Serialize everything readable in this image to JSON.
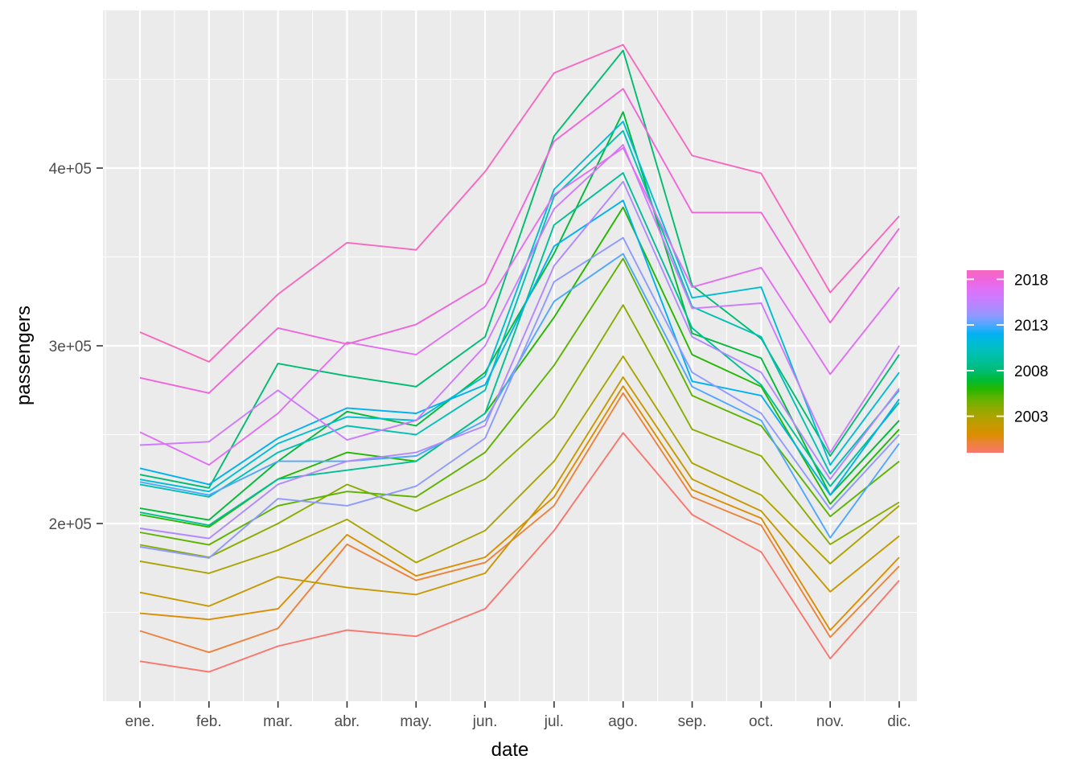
{
  "figure": {
    "background": "#ffffff"
  },
  "panel": {
    "background": "#ebebeb",
    "grid_major_color": "#ffffff",
    "grid_minor_color": "#ffffff",
    "tick_color": "#333333",
    "tick_label_color": "#4d4d4d",
    "axis_title_color": "#000000"
  },
  "legend": {
    "position": "right",
    "type": "colorbar",
    "tick_labels": [
      "2018",
      "2013",
      "2008",
      "2003"
    ],
    "tick_years": [
      2018,
      2013,
      2008,
      2003
    ],
    "year_min": 1999,
    "year_max": 2019,
    "tick_mark_color": "#ffffff",
    "label_color": "#000000"
  },
  "chart_data": {
    "type": "line",
    "x": [
      "ene.",
      "feb.",
      "mar.",
      "abr.",
      "may.",
      "jun.",
      "jul.",
      "ago.",
      "sep.",
      "oct.",
      "nov.",
      "dic."
    ],
    "xlabel": "date",
    "ylabel": "passengers",
    "ylim": [
      100000,
      480000
    ],
    "yticks": [
      {
        "label": "2e+05",
        "value": 200000
      },
      {
        "label": "3e+05",
        "value": 300000
      },
      {
        "label": "4e+05",
        "value": 400000
      }
    ],
    "yminor": [
      150000,
      250000,
      350000,
      450000
    ],
    "grid": true,
    "legend_position": "right",
    "series": [
      {
        "name": "1999",
        "color": "#F8766D",
        "values": [
          122500,
          116500,
          131000,
          140000,
          136500,
          152000,
          196000,
          251000,
          205000,
          184000,
          124000,
          168000
        ]
      },
      {
        "name": "2000",
        "color": "#EC823C",
        "values": [
          139600,
          127500,
          141000,
          188300,
          168000,
          178000,
          210000,
          273400,
          215000,
          199000,
          136000,
          176000
        ]
      },
      {
        "name": "2001",
        "color": "#DB8E00",
        "values": [
          149500,
          146000,
          152000,
          193700,
          170500,
          181000,
          215000,
          277300,
          219000,
          203000,
          140000,
          181000
        ]
      },
      {
        "name": "2002",
        "color": "#C69900",
        "values": [
          161200,
          153500,
          170000,
          164000,
          160000,
          172000,
          220000,
          282400,
          225000,
          207000,
          161600,
          193000
        ]
      },
      {
        "name": "2003",
        "color": "#ABA300",
        "values": [
          178800,
          172000,
          185000,
          202300,
          178000,
          196000,
          235000,
          294100,
          234000,
          216000,
          177400,
          210000
        ]
      },
      {
        "name": "2004",
        "color": "#89AC00",
        "values": [
          188000,
          181000,
          200000,
          222000,
          207000,
          225000,
          260000,
          323000,
          253000,
          238000,
          188300,
          212000
        ]
      },
      {
        "name": "2005",
        "color": "#5EB300",
        "values": [
          195000,
          188000,
          210000,
          218000,
          215000,
          240000,
          289000,
          349100,
          272000,
          255000,
          204000,
          235000
        ]
      },
      {
        "name": "2006",
        "color": "#24B700",
        "values": [
          205000,
          198000,
          225000,
          240000,
          235000,
          262000,
          316000,
          377900,
          295000,
          277000,
          211000,
          253000
        ]
      },
      {
        "name": "2007",
        "color": "#00BA38",
        "values": [
          208600,
          202000,
          235000,
          263000,
          255000,
          285000,
          352000,
          431600,
          307000,
          293000,
          216000,
          258000
        ]
      },
      {
        "name": "2008",
        "color": "#00BB72",
        "values": [
          227500,
          220000,
          290000,
          283000,
          277000,
          305000,
          418000,
          466200,
          334000,
          304000,
          238000,
          295000
        ]
      },
      {
        "name": "2009",
        "color": "#00BF96",
        "values": [
          206300,
          199000,
          225000,
          230000,
          235000,
          262000,
          368000,
          397300,
          310000,
          278000,
          221000,
          268000
        ]
      },
      {
        "name": "2010",
        "color": "#00C0B4",
        "values": [
          222000,
          215000,
          240000,
          255000,
          250000,
          275000,
          384000,
          421000,
          322000,
          305000,
          228000,
          275000
        ]
      },
      {
        "name": "2011",
        "color": "#00BCD4",
        "values": [
          224800,
          218000,
          245000,
          260000,
          258000,
          283000,
          388000,
          426200,
          327000,
          333000,
          233000,
          285000
        ]
      },
      {
        "name": "2012",
        "color": "#00B1F2",
        "values": [
          231100,
          222000,
          248000,
          265000,
          262000,
          278000,
          356000,
          381800,
          280000,
          272000,
          216000,
          270000
        ]
      },
      {
        "name": "2013",
        "color": "#4FA7FF",
        "values": [
          223400,
          216000,
          235000,
          235000,
          238000,
          258000,
          325000,
          351800,
          277000,
          258000,
          192000,
          245000
        ]
      },
      {
        "name": "2014",
        "color": "#8E9AFF",
        "values": [
          186900,
          180600,
          214000,
          210000,
          221000,
          248000,
          336000,
          360800,
          285000,
          262000,
          208000,
          250000
        ]
      },
      {
        "name": "2015",
        "color": "#B288FF",
        "values": [
          197300,
          191600,
          222000,
          235000,
          240000,
          255000,
          345000,
          392400,
          305000,
          285000,
          225000,
          276000
        ]
      },
      {
        "name": "2016",
        "color": "#CC7BFF",
        "values": [
          244100,
          246000,
          275000,
          247000,
          258000,
          300000,
          377000,
          413100,
          321000,
          324000,
          240000,
          300000
        ]
      },
      {
        "name": "2017",
        "color": "#E16FF4",
        "values": [
          251400,
          233000,
          262000,
          302000,
          295000,
          322000,
          385000,
          411300,
          333000,
          344000,
          284000,
          333000
        ]
      },
      {
        "name": "2018",
        "color": "#EF65DB",
        "values": [
          282000,
          273400,
          310000,
          301000,
          312000,
          335000,
          415000,
          444600,
          375000,
          375000,
          313000,
          366000
        ]
      },
      {
        "name": "2019",
        "color": "#F669BE",
        "values": [
          307700,
          291000,
          329000,
          358000,
          354000,
          398000,
          453500,
          469400,
          407000,
          397000,
          330000,
          373000
        ]
      }
    ]
  }
}
